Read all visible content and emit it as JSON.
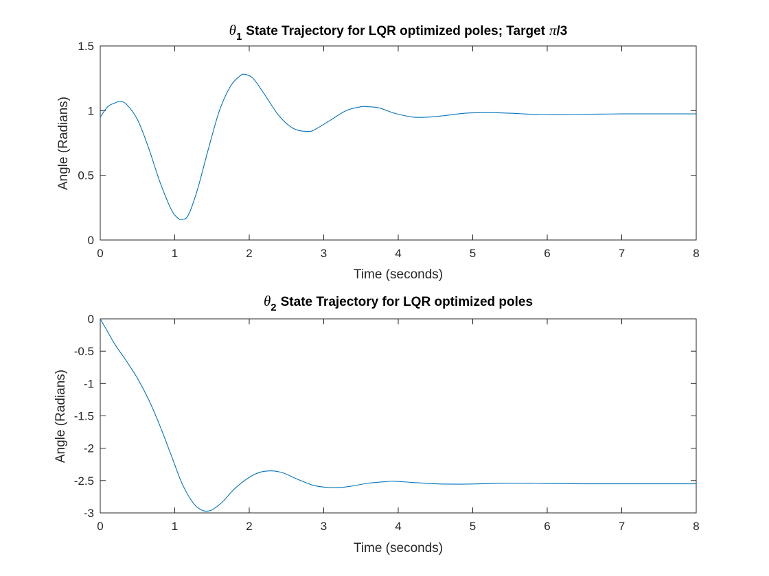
{
  "chart_data": [
    {
      "type": "line",
      "title": {
        "symbol": "θ",
        "subscript": "1",
        "text": "State Trajectory for LQR optimized poles; Target",
        "pi": "π",
        "suffix": "/3"
      },
      "xlabel": "Time (seconds)",
      "ylabel": "Angle (Radians)",
      "xlim": [
        0,
        8
      ],
      "ylim": [
        0,
        1.5
      ],
      "xticks": [
        0,
        1,
        2,
        3,
        4,
        5,
        6,
        7,
        8
      ],
      "xtick_labels": [
        "0",
        "1",
        "2",
        "3",
        "4",
        "5",
        "6",
        "7",
        "8"
      ],
      "yticks": [
        0,
        0.5,
        1,
        1.5
      ],
      "ytick_labels": [
        "0",
        "0.5",
        "1",
        "1.5"
      ],
      "grid": false,
      "color": "#0072BD",
      "series": [
        {
          "x": [
            0,
            0.1,
            0.2,
            0.26,
            0.35,
            0.5,
            0.65,
            0.8,
            0.95,
            1.04,
            1.1,
            1.18,
            1.3,
            1.45,
            1.6,
            1.75,
            1.88,
            1.94,
            2.05,
            2.2,
            2.4,
            2.6,
            2.8,
            2.9,
            3.1,
            3.3,
            3.5,
            3.6,
            3.75,
            3.95,
            4.2,
            4.4,
            4.6,
            4.9,
            5.2,
            5.5,
            5.9,
            6.3,
            7.0,
            7.5,
            8.0
          ],
          "y": [
            0.95,
            1.03,
            1.06,
            1.07,
            1.05,
            0.93,
            0.71,
            0.45,
            0.24,
            0.17,
            0.16,
            0.19,
            0.38,
            0.7,
            1.0,
            1.19,
            1.27,
            1.28,
            1.25,
            1.13,
            0.96,
            0.86,
            0.84,
            0.86,
            0.93,
            1.0,
            1.03,
            1.03,
            1.02,
            0.98,
            0.95,
            0.95,
            0.96,
            0.98,
            0.985,
            0.98,
            0.97,
            0.97,
            0.975,
            0.975,
            0.975
          ]
        }
      ]
    },
    {
      "type": "line",
      "title": {
        "symbol": "θ",
        "subscript": "2",
        "text": "State Trajectory for LQR optimized poles"
      },
      "xlabel": "Time (seconds)",
      "ylabel": "Angle (Radians)",
      "xlim": [
        0,
        8
      ],
      "ylim": [
        -3,
        0
      ],
      "xticks": [
        0,
        1,
        2,
        3,
        4,
        5,
        6,
        7,
        8
      ],
      "xtick_labels": [
        "0",
        "1",
        "2",
        "3",
        "4",
        "5",
        "6",
        "7",
        "8"
      ],
      "yticks": [
        -3,
        -2.5,
        -2,
        -1.5,
        -1,
        -0.5,
        0
      ],
      "ytick_labels": [
        "-3",
        "-2.5",
        "-2",
        "-1.5",
        "-1",
        "-0.5",
        "0"
      ],
      "grid": false,
      "color": "#0072BD",
      "series": [
        {
          "x": [
            0,
            0.1,
            0.2,
            0.35,
            0.5,
            0.65,
            0.8,
            0.95,
            1.1,
            1.25,
            1.37,
            1.45,
            1.52,
            1.65,
            1.8,
            2.0,
            2.15,
            2.3,
            2.45,
            2.65,
            2.85,
            3.0,
            3.15,
            3.35,
            3.6,
            3.85,
            3.95,
            4.2,
            4.5,
            4.8,
            5.1,
            5.5,
            6.0,
            6.5,
            7.0,
            7.5,
            8.0
          ],
          "y": [
            0,
            -0.2,
            -0.4,
            -0.65,
            -0.92,
            -1.25,
            -1.65,
            -2.1,
            -2.55,
            -2.85,
            -2.96,
            -2.97,
            -2.94,
            -2.82,
            -2.63,
            -2.45,
            -2.37,
            -2.35,
            -2.38,
            -2.48,
            -2.57,
            -2.6,
            -2.61,
            -2.59,
            -2.54,
            -2.515,
            -2.51,
            -2.53,
            -2.55,
            -2.555,
            -2.55,
            -2.54,
            -2.545,
            -2.55,
            -2.55,
            -2.55,
            -2.55
          ]
        }
      ]
    }
  ]
}
